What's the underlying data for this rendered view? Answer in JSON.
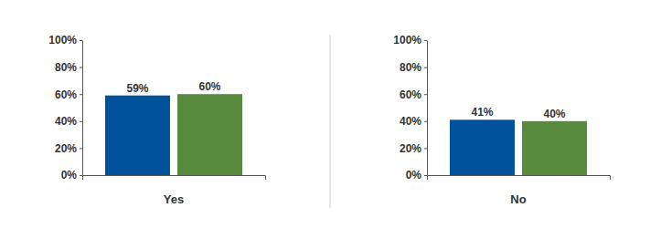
{
  "chart_data": [
    {
      "type": "bar",
      "categories": [
        "Yes"
      ],
      "series": [
        {
          "color": "#00529b",
          "values": [
            59
          ],
          "value_labels": [
            "59%"
          ]
        },
        {
          "color": "#578a3c",
          "values": [
            60
          ],
          "value_labels": [
            "60%"
          ]
        }
      ],
      "ylim": [
        0,
        100
      ],
      "yticks": [
        {
          "value": 0,
          "label": "0%"
        },
        {
          "value": 20,
          "label": "20%"
        },
        {
          "value": 40,
          "label": "40%"
        },
        {
          "value": 60,
          "label": "60%"
        },
        {
          "value": 80,
          "label": "80%"
        },
        {
          "value": 100,
          "label": "100%"
        }
      ],
      "data_labels": true
    },
    {
      "type": "bar",
      "categories": [
        "No"
      ],
      "series": [
        {
          "color": "#00529b",
          "values": [
            41
          ],
          "value_labels": [
            "41%"
          ]
        },
        {
          "color": "#578a3c",
          "values": [
            40
          ],
          "value_labels": [
            "40%"
          ]
        }
      ],
      "ylim": [
        0,
        100
      ],
      "yticks": [
        {
          "value": 0,
          "label": "0%"
        },
        {
          "value": 20,
          "label": "20%"
        },
        {
          "value": 40,
          "label": "40%"
        },
        {
          "value": 60,
          "label": "60%"
        },
        {
          "value": 80,
          "label": "80%"
        },
        {
          "value": 100,
          "label": "100%"
        }
      ],
      "data_labels": true
    }
  ]
}
